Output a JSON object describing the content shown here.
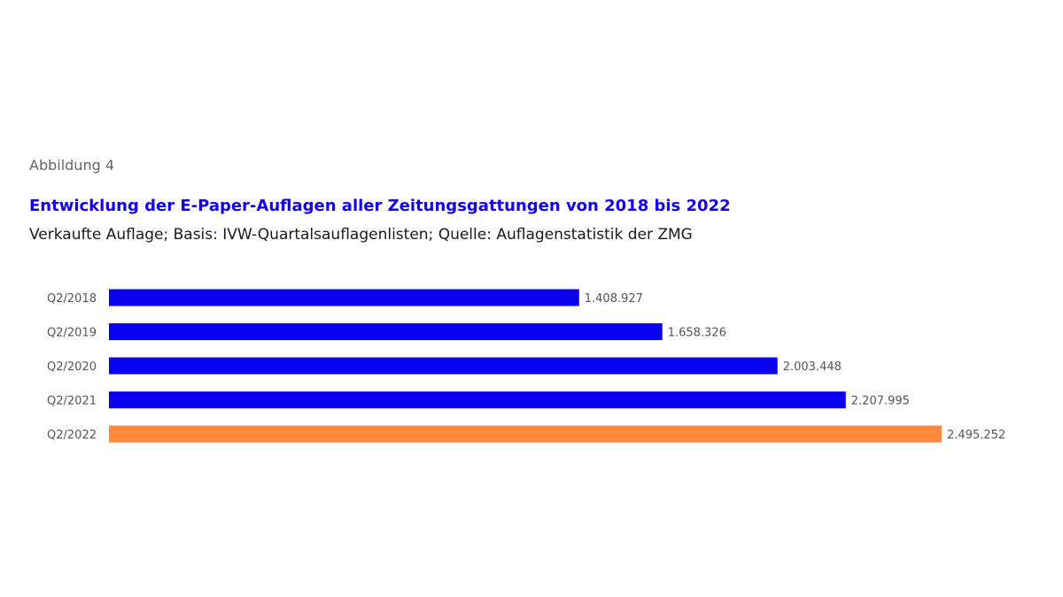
{
  "figure_label": "Abbildung 4",
  "colors": {
    "title": "#1400e6",
    "bar_default": "#0a00f0",
    "bar_highlight": "#ff8a3d"
  },
  "chart_data": {
    "type": "bar",
    "orientation": "horizontal",
    "title": "Entwicklung der E-Paper-Auflagen aller Zeitungsgattungen von 2018 bis 2022",
    "subtitle": "Verkaufte Auflage; Basis: IVW-Quartalsauflagenlisten; Quelle: Auflagenstatistik der ZMG",
    "xlabel": "",
    "ylabel": "",
    "categories": [
      "Q2/2018",
      "Q2/2019",
      "Q2/2020",
      "Q2/2021",
      "Q2/2022"
    ],
    "values": [
      1408927,
      1658326,
      2003448,
      2207995,
      2495252
    ],
    "value_labels": [
      "1.408.927",
      "1.658.326",
      "2.003.448",
      "2.207.995",
      "2.495.252"
    ],
    "highlight_category": "Q2/2022",
    "xlim": [
      0,
      2495252
    ],
    "grid": false,
    "legend": "none"
  }
}
